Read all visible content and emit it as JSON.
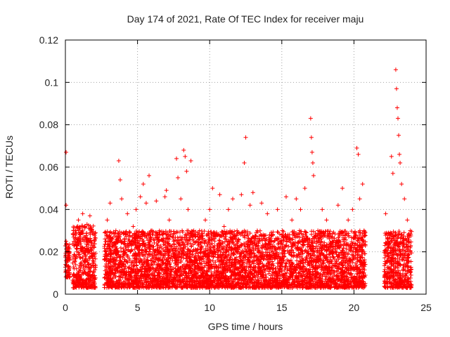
{
  "chart_data": {
    "type": "scatter",
    "title": "Day 174 of 2021, Rate Of TEC Index for receiver maju",
    "xlabel": "GPS time / hours",
    "ylabel": "ROTI / TECUs",
    "xlim": [
      0,
      25
    ],
    "ylim": [
      0,
      0.12
    ],
    "x_ticks": [
      0,
      5,
      10,
      15,
      20,
      25
    ],
    "x_tick_labels": [
      "0",
      "5",
      "10",
      "15",
      "20",
      "25"
    ],
    "y_ticks": [
      0,
      0.02,
      0.04,
      0.06,
      0.08,
      0.1,
      0.12
    ],
    "y_tick_labels": [
      "0",
      "0.02",
      "0.04",
      "0.06",
      "0.08",
      "0.1",
      "0.12"
    ],
    "grid": true,
    "marker": "+",
    "color": "#ff0000",
    "series": [
      {
        "name": "ROTI",
        "points": [
          [
            0.05,
            0.067
          ],
          [
            0.05,
            0.042
          ],
          [
            0.05,
            0.025
          ],
          [
            0.08,
            0.02
          ],
          [
            0.1,
            0.015
          ],
          [
            0.12,
            0.01
          ],
          [
            0.15,
            0.018
          ],
          [
            0.2,
            0.022
          ],
          [
            0.25,
            0.012
          ],
          [
            0.3,
            0.008
          ],
          [
            0.6,
            0.012
          ],
          [
            0.7,
            0.03
          ],
          [
            0.8,
            0.02
          ],
          [
            0.9,
            0.035
          ],
          [
            1.0,
            0.028
          ],
          [
            1.1,
            0.015
          ],
          [
            1.2,
            0.038
          ],
          [
            1.3,
            0.025
          ],
          [
            1.4,
            0.01
          ],
          [
            1.5,
            0.033
          ],
          [
            1.6,
            0.02
          ],
          [
            1.7,
            0.037
          ],
          [
            1.8,
            0.018
          ],
          [
            1.9,
            0.005
          ],
          [
            2.0,
            0.025
          ],
          [
            2.8,
            0.02
          ],
          [
            2.9,
            0.035
          ],
          [
            3.1,
            0.043
          ],
          [
            3.3,
            0.015
          ],
          [
            3.5,
            0.03
          ],
          [
            3.7,
            0.063
          ],
          [
            3.8,
            0.054
          ],
          [
            3.9,
            0.045
          ],
          [
            4.1,
            0.025
          ],
          [
            4.3,
            0.038
          ],
          [
            4.5,
            0.02
          ],
          [
            4.7,
            0.032
          ],
          [
            4.9,
            0.04
          ],
          [
            5.1,
            0.028
          ],
          [
            5.2,
            0.046
          ],
          [
            5.4,
            0.052
          ],
          [
            5.6,
            0.043
          ],
          [
            5.8,
            0.056
          ],
          [
            6.0,
            0.03
          ],
          [
            6.3,
            0.044
          ],
          [
            6.6,
            0.02
          ],
          [
            6.9,
            0.046
          ],
          [
            7.0,
            0.049
          ],
          [
            7.2,
            0.035
          ],
          [
            7.5,
            0.025
          ],
          [
            7.7,
            0.064
          ],
          [
            7.8,
            0.055
          ],
          [
            8.0,
            0.045
          ],
          [
            8.2,
            0.068
          ],
          [
            8.3,
            0.065
          ],
          [
            8.4,
            0.058
          ],
          [
            8.5,
            0.04
          ],
          [
            8.7,
            0.063
          ],
          [
            8.9,
            0.03
          ],
          [
            9.1,
            0.025
          ],
          [
            9.4,
            0.02
          ],
          [
            9.7,
            0.035
          ],
          [
            10.0,
            0.04
          ],
          [
            10.2,
            0.05
          ],
          [
            10.5,
            0.028
          ],
          [
            10.7,
            0.047
          ],
          [
            11.0,
            0.032
          ],
          [
            11.3,
            0.04
          ],
          [
            11.6,
            0.045
          ],
          [
            11.9,
            0.03
          ],
          [
            12.2,
            0.047
          ],
          [
            12.4,
            0.062
          ],
          [
            12.5,
            0.074
          ],
          [
            12.8,
            0.042
          ],
          [
            13.0,
            0.048
          ],
          [
            13.3,
            0.03
          ],
          [
            13.6,
            0.043
          ],
          [
            14.0,
            0.038
          ],
          [
            14.3,
            0.025
          ],
          [
            14.7,
            0.04
          ],
          [
            15.0,
            0.028
          ],
          [
            15.3,
            0.046
          ],
          [
            15.7,
            0.035
          ],
          [
            16.0,
            0.045
          ],
          [
            16.3,
            0.04
          ],
          [
            16.6,
            0.05
          ],
          [
            17.0,
            0.083
          ],
          [
            17.05,
            0.074
          ],
          [
            17.1,
            0.067
          ],
          [
            17.15,
            0.062
          ],
          [
            17.2,
            0.056
          ],
          [
            17.5,
            0.03
          ],
          [
            17.8,
            0.04
          ],
          [
            18.1,
            0.035
          ],
          [
            18.5,
            0.025
          ],
          [
            18.9,
            0.042
          ],
          [
            19.2,
            0.05
          ],
          [
            19.6,
            0.035
          ],
          [
            19.9,
            0.04
          ],
          [
            20.2,
            0.069
          ],
          [
            20.3,
            0.066
          ],
          [
            20.4,
            0.045
          ],
          [
            20.6,
            0.052
          ],
          [
            20.7,
            0.03
          ],
          [
            22.2,
            0.038
          ],
          [
            22.4,
            0.025
          ],
          [
            22.6,
            0.065
          ],
          [
            22.7,
            0.057
          ],
          [
            22.9,
            0.106
          ],
          [
            22.95,
            0.097
          ],
          [
            23.0,
            0.088
          ],
          [
            23.05,
            0.083
          ],
          [
            23.1,
            0.075
          ],
          [
            23.15,
            0.066
          ],
          [
            23.2,
            0.062
          ],
          [
            23.3,
            0.052
          ],
          [
            23.5,
            0.045
          ],
          [
            23.7,
            0.035
          ],
          [
            23.9,
            0.03
          ]
        ]
      }
    ],
    "dense_bands": [
      {
        "x_range": [
          0.0,
          0.3
        ],
        "y_range": [
          0.008,
          0.024
        ]
      },
      {
        "x_range": [
          0.5,
          2.1
        ],
        "y_range": [
          0.003,
          0.033
        ]
      },
      {
        "x_range": [
          2.7,
          20.8
        ],
        "y_range": [
          0.003,
          0.03
        ]
      },
      {
        "x_range": [
          22.1,
          24.0
        ],
        "y_range": [
          0.003,
          0.03
        ]
      }
    ]
  }
}
